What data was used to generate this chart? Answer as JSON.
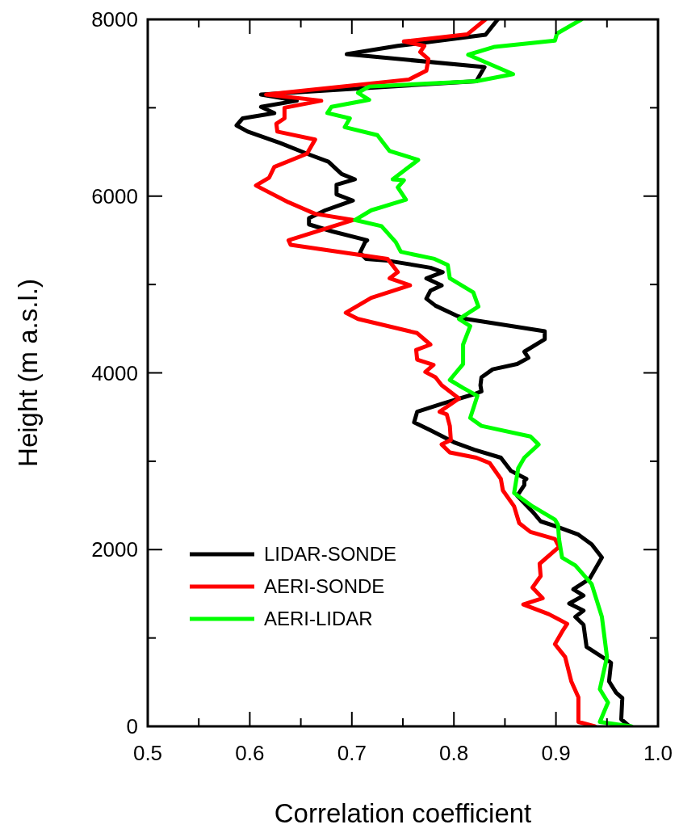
{
  "chart_data": {
    "type": "line",
    "xlabel": "Correlation coefficient",
    "ylabel": "Height (m a.s.l.)",
    "xlim": [
      0.5,
      1.0
    ],
    "ylim": [
      0,
      8000
    ],
    "xticks": [
      0.5,
      {
        "value": 0.55,
        "label": null
      },
      0.6,
      {
        "value": 0.65,
        "label": null
      },
      0.7,
      {
        "value": 0.75,
        "label": null
      },
      0.8,
      {
        "value": 0.85,
        "label": null
      },
      0.9,
      {
        "value": 0.95,
        "label": null
      },
      {
        "value": 1.0,
        "label": "1.0"
      }
    ],
    "yticks": [
      0,
      {
        "value": 1000,
        "label": null
      },
      2000,
      {
        "value": 3000,
        "label": null
      },
      4000,
      {
        "value": 5000,
        "label": null
      },
      6000,
      {
        "value": 7000,
        "label": null
      },
      8000
    ],
    "legend": "bottom left",
    "line_style": "solid",
    "marker": "none",
    "grid": false,
    "series": [
      {
        "name": "LIDAR-SONDE",
        "color": "#000000",
        "x": [
          0.972,
          0.964,
          0.965,
          0.959,
          0.952,
          0.954,
          0.93,
          0.927,
          0.919,
          0.927,
          0.913,
          0.927,
          0.917,
          0.933,
          0.945,
          0.935,
          0.922,
          0.901,
          0.885,
          0.877,
          0.862,
          0.869,
          0.869,
          0.871,
          0.856,
          0.846,
          0.82,
          0.801,
          0.777,
          0.761,
          0.764,
          0.788,
          0.82,
          0.827,
          0.826,
          0.827,
          0.838,
          0.862,
          0.873,
          0.869,
          0.889,
          0.889,
          0.812,
          0.804,
          0.782,
          0.773,
          0.777,
          0.788,
          0.773,
          0.789,
          0.777,
          0.735,
          0.714,
          0.708,
          0.713,
          0.715,
          0.681,
          0.658,
          0.658,
          0.674,
          0.701,
          0.685,
          0.685,
          0.703,
          0.69,
          0.677,
          0.656,
          0.63,
          0.598,
          0.587,
          0.593,
          0.624,
          0.611,
          0.646,
          0.611,
          0.822,
          0.83,
          0.695,
          0.745,
          0.831,
          0.843
        ],
        "values": [
          0,
          80,
          320,
          380,
          510,
          720,
          900,
          1150,
          1240,
          1310,
          1390,
          1480,
          1550,
          1670,
          1910,
          2060,
          2170,
          2260,
          2320,
          2430,
          2610,
          2730,
          2780,
          2800,
          2890,
          3040,
          3130,
          3210,
          3350,
          3440,
          3560,
          3650,
          3760,
          3790,
          3860,
          3950,
          4040,
          4100,
          4170,
          4240,
          4380,
          4470,
          4610,
          4640,
          4760,
          4840,
          4930,
          4990,
          5070,
          5140,
          5190,
          5270,
          5290,
          5360,
          5480,
          5500,
          5600,
          5680,
          5750,
          5840,
          5950,
          6020,
          6130,
          6190,
          6250,
          6390,
          6480,
          6600,
          6730,
          6800,
          6880,
          6940,
          7010,
          7080,
          7150,
          7300,
          7460,
          7607,
          7700,
          7826,
          8000
        ]
      },
      {
        "name": "AERI-SONDE",
        "color": "#ff0000",
        "x": [
          0.938,
          0.922,
          0.922,
          0.915,
          0.909,
          0.899,
          0.907,
          0.911,
          0.893,
          0.868,
          0.887,
          0.877,
          0.885,
          0.884,
          0.903,
          0.899,
          0.875,
          0.864,
          0.859,
          0.848,
          0.846,
          0.835,
          0.822,
          0.796,
          0.788,
          0.797,
          0.796,
          0.793,
          0.786,
          0.805,
          0.788,
          0.782,
          0.772,
          0.78,
          0.764,
          0.763,
          0.777,
          0.764,
          0.706,
          0.694,
          0.719,
          0.757,
          0.737,
          0.745,
          0.735,
          0.64,
          0.638,
          0.701,
          0.664,
          0.638,
          0.606,
          0.619,
          0.624,
          0.656,
          0.664,
          0.627,
          0.626,
          0.634,
          0.634,
          0.67,
          0.616,
          0.756,
          0.773,
          0.775,
          0.767,
          0.771,
          0.751,
          0.813,
          0.831
        ],
        "values": [
          0,
          50,
          330,
          510,
          785,
          930,
          1090,
          1160,
          1270,
          1380,
          1450,
          1570,
          1700,
          1840,
          2030,
          2120,
          2200,
          2300,
          2490,
          2670,
          2800,
          2980,
          3040,
          3100,
          3190,
          3240,
          3400,
          3530,
          3560,
          3710,
          3860,
          3950,
          4010,
          4090,
          4150,
          4260,
          4320,
          4450,
          4610,
          4680,
          4850,
          4990,
          5070,
          5140,
          5290,
          5450,
          5500,
          5730,
          5800,
          5930,
          6120,
          6210,
          6330,
          6480,
          6640,
          6730,
          6820,
          6880,
          7000,
          7080,
          7150,
          7320,
          7420,
          7550,
          7630,
          7700,
          7750,
          7830,
          8000
        ]
      },
      {
        "name": "AERI-LIDAR",
        "color": "#00ff00",
        "x": [
          0.974,
          0.943,
          0.951,
          0.943,
          0.95,
          0.945,
          0.935,
          0.919,
          0.906,
          0.903,
          0.902,
          0.899,
          0.877,
          0.859,
          0.863,
          0.869,
          0.883,
          0.875,
          0.827,
          0.816,
          0.823,
          0.809,
          0.796,
          0.809,
          0.809,
          0.816,
          0.805,
          0.824,
          0.819,
          0.796,
          0.794,
          0.781,
          0.748,
          0.743,
          0.729,
          0.703,
          0.719,
          0.753,
          0.745,
          0.751,
          0.74,
          0.765,
          0.737,
          0.725,
          0.693,
          0.698,
          0.676,
          0.68,
          0.717,
          0.706,
          0.717,
          0.822,
          0.858,
          0.814,
          0.84,
          0.899,
          0.901,
          0.925
        ],
        "values": [
          0,
          50,
          270,
          420,
          785,
          1240,
          1610,
          1820,
          1910,
          2120,
          2280,
          2340,
          2490,
          2640,
          2920,
          3040,
          3190,
          3280,
          3400,
          3490,
          3740,
          3830,
          3920,
          4100,
          4320,
          4530,
          4610,
          4750,
          4910,
          5070,
          5220,
          5290,
          5370,
          5480,
          5660,
          5730,
          5840,
          5960,
          6100,
          6180,
          6190,
          6410,
          6510,
          6690,
          6780,
          6880,
          6940,
          7010,
          7090,
          7170,
          7240,
          7300,
          7380,
          7600,
          7690,
          7760,
          7840,
          8000
        ]
      }
    ]
  }
}
